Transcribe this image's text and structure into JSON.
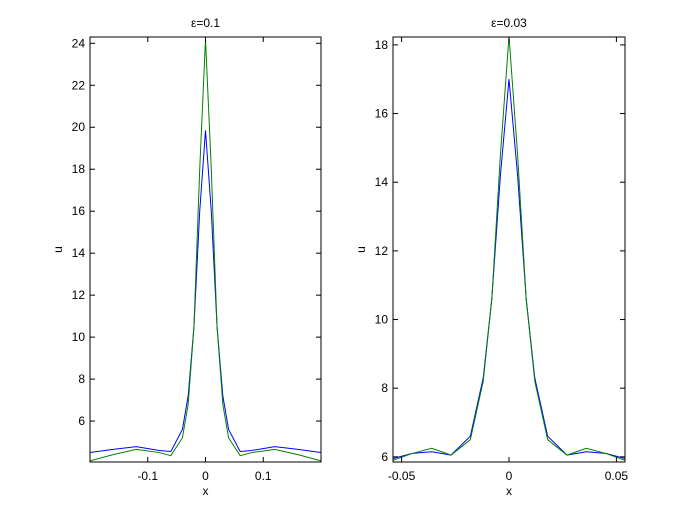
{
  "chart_data": [
    {
      "type": "line",
      "title": "ε=0.1",
      "x_label": "x",
      "y_label": "u",
      "x": [
        -0.2,
        -0.16,
        -0.12,
        -0.08,
        -0.06,
        -0.04,
        -0.03,
        -0.02,
        -0.01,
        0,
        0.01,
        0.02,
        0.03,
        0.04,
        0.06,
        0.08,
        0.12,
        0.16,
        0.2
      ],
      "series": [
        {
          "color": "#0000ff",
          "values": [
            4.5,
            4.65,
            4.78,
            4.6,
            4.55,
            5.6,
            7.2,
            10.5,
            16,
            19.85,
            16,
            10.5,
            7.2,
            5.6,
            4.55,
            4.6,
            4.78,
            4.65,
            4.5
          ]
        },
        {
          "color": "#008000",
          "values": [
            4.1,
            4.4,
            4.65,
            4.5,
            4.35,
            5.2,
            6.8,
            10.5,
            18,
            24.2,
            18,
            10.5,
            6.8,
            5.2,
            4.35,
            4.5,
            4.65,
            4.4,
            4.1
          ]
        }
      ],
      "xlim": [
        -0.2,
        0.2
      ],
      "xticks": [
        -0.1,
        0,
        0.1
      ],
      "ylim": [
        4.05,
        24.3
      ],
      "yticks": [
        6,
        8,
        10,
        12,
        14,
        16,
        18,
        20,
        22,
        24
      ]
    },
    {
      "type": "line",
      "title": "ε=0.03",
      "x_label": "x",
      "y_label": "u",
      "x": [
        -0.054,
        -0.045,
        -0.036,
        -0.027,
        -0.018,
        -0.012,
        -0.008,
        -0.004,
        0,
        0.004,
        0.008,
        0.012,
        0.018,
        0.027,
        0.036,
        0.045,
        0.054
      ],
      "series": [
        {
          "color": "#0000ff",
          "values": [
            5.95,
            6.1,
            6.15,
            6.05,
            6.6,
            8.3,
            10.6,
            14.2,
            17.0,
            14.2,
            10.6,
            8.3,
            6.6,
            6.05,
            6.15,
            6.1,
            5.95
          ]
        },
        {
          "color": "#008000",
          "values": [
            5.9,
            6.1,
            6.25,
            6.05,
            6.5,
            8.2,
            10.6,
            14.8,
            18.25,
            14.8,
            10.6,
            8.2,
            6.5,
            6.05,
            6.25,
            6.1,
            5.9
          ]
        }
      ],
      "xlim": [
        -0.054,
        0.054
      ],
      "xticks": [
        -0.05,
        0,
        0.05
      ],
      "ylim": [
        5.85,
        18.23
      ],
      "yticks": [
        6,
        8,
        10,
        12,
        14,
        16,
        18
      ]
    }
  ]
}
